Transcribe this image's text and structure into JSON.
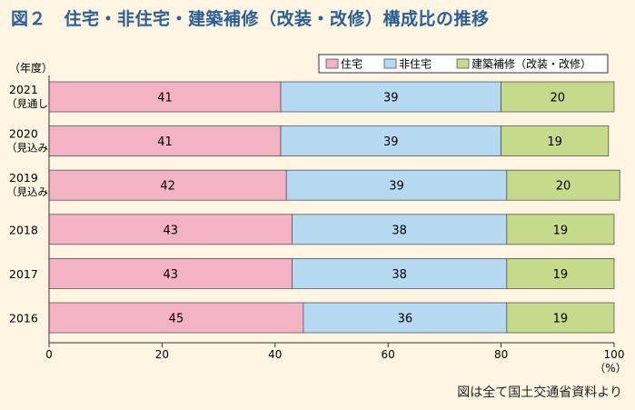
{
  "title": "図２　住宅・非住宅・建築補修（改装・改修）構成比の推移",
  "source": "図は全て国土交通省資料より",
  "chart_data": {
    "type": "bar",
    "orientation": "horizontal",
    "stacked": true,
    "category_axis_title": "（年度）",
    "value_unit": "（%）",
    "categories": [
      {
        "label": "2021",
        "sub": "（見通し）"
      },
      {
        "label": "2020",
        "sub": "（見込み）"
      },
      {
        "label": "2019",
        "sub": "（見込み）"
      },
      {
        "label": "2018",
        "sub": ""
      },
      {
        "label": "2017",
        "sub": ""
      },
      {
        "label": "2016",
        "sub": ""
      }
    ],
    "series": [
      {
        "name": "住宅",
        "color": "#f4b3c2",
        "values": [
          41,
          41,
          42,
          43,
          43,
          45
        ]
      },
      {
        "name": "非住宅",
        "color": "#b6d9f2",
        "values": [
          39,
          39,
          39,
          38,
          38,
          36
        ]
      },
      {
        "name": "建築補修（改装・改修）",
        "color": "#c6da8b",
        "values": [
          20,
          19,
          20,
          19,
          19,
          19
        ]
      }
    ],
    "xlim": [
      0,
      100
    ],
    "xticks": [
      0,
      20,
      40,
      60,
      80,
      100
    ],
    "legend_position": "top-right",
    "grid": false
  }
}
